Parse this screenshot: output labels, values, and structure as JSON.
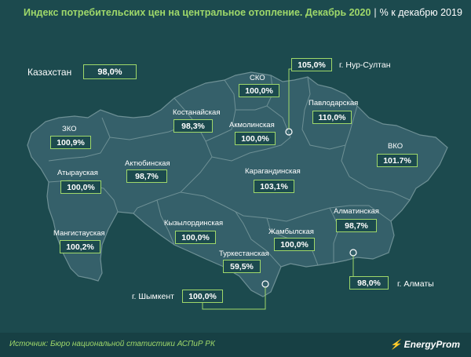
{
  "title": {
    "main": "Индекс потребительских цен на центральное отопление. Декабрь 2020",
    "separator": "|",
    "sub": "% к декабрю 2019"
  },
  "country": {
    "name": "Казахстан",
    "value": "98,0%"
  },
  "regions": [
    {
      "name": "ЗКО",
      "value": "100,9%"
    },
    {
      "name": "Атырауская",
      "value": "100,0%"
    },
    {
      "name": "Мангистауская",
      "value": "100,2%"
    },
    {
      "name": "Актюбинская",
      "value": "98,7%"
    },
    {
      "name": "Костанайская",
      "value": "98,3%"
    },
    {
      "name": "СКО",
      "value": "100,0%"
    },
    {
      "name": "Акмолинская",
      "value": "100,0%"
    },
    {
      "name": "Павлодарская",
      "value": "110,0%"
    },
    {
      "name": "ВКО",
      "value": "101.7%"
    },
    {
      "name": "Карагандинская",
      "value": "103,1%"
    },
    {
      "name": "Кызылординская",
      "value": "100,0%"
    },
    {
      "name": "Жамбылская",
      "value": "100,0%"
    },
    {
      "name": "Туркестанская",
      "value": "59,5%"
    },
    {
      "name": "Алматинская",
      "value": "98,7%"
    }
  ],
  "cities": [
    {
      "name": "г. Нур-Султан",
      "value": "105,0%"
    },
    {
      "name": "г. Шымкент",
      "value": "100,0%"
    },
    {
      "name": "г. Алматы",
      "value": "98,0%"
    }
  ],
  "footer": {
    "source": "Источник: Бюро национальной статистики АСПиР РК",
    "brand": "EnergyProm"
  },
  "colors": {
    "background": "#1c4a4e",
    "map_fill": "#35606a",
    "border": "#6e9095",
    "accent": "#9fd86a"
  }
}
